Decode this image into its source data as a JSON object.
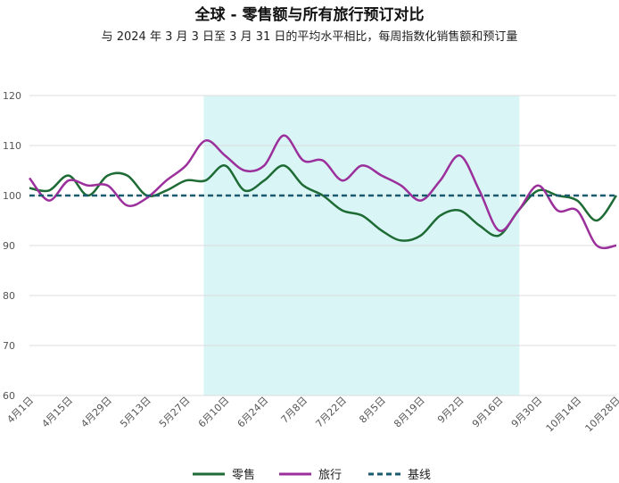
{
  "chart_data": {
    "type": "line",
    "title": "全球 - 零售额与所有旅行预订对比",
    "subtitle": "与 2024 年 3 月 3 日至 3 月 31 日的平均水平相比，每周指数化销售额和预订量",
    "xlabel": "",
    "ylabel": "",
    "ylim": [
      60,
      120
    ],
    "yticks": [
      60,
      70,
      80,
      90,
      100,
      110,
      120
    ],
    "grid": true,
    "legend_position": "bottom",
    "x_tick_labels": [
      "4月1日",
      "4月15日",
      "4月29日",
      "5月13日",
      "5月27日",
      "6月10日",
      "6月24日",
      "7月8日",
      "7月22日",
      "8月5日",
      "8月19日",
      "9月2日",
      "9月16日",
      "9月30日",
      "10月14日",
      "10月28日"
    ],
    "x": [
      "4月1日",
      "4月8日",
      "4月15日",
      "4月22日",
      "4月29日",
      "5月6日",
      "5月13日",
      "5月20日",
      "5月27日",
      "6月3日",
      "6月10日",
      "6月17日",
      "6月24日",
      "7月1日",
      "7月8日",
      "7月15日",
      "7月22日",
      "7月29日",
      "8月5日",
      "8月12日",
      "8月19日",
      "8月26日",
      "9月2日",
      "9月9日",
      "9月16日",
      "9月23日",
      "9月30日",
      "10月7日",
      "10月14日",
      "10月21日",
      "10月28日"
    ],
    "shaded_region": {
      "start": "6月3日",
      "end": "9月23日",
      "color": "#d9f5f5"
    },
    "series": [
      {
        "name": "零售",
        "color": "#1e6b35",
        "style": "solid",
        "values": [
          101.5,
          101,
          104,
          100,
          104,
          104,
          100,
          101,
          103,
          103,
          106,
          101,
          103,
          106,
          102,
          100,
          97,
          96,
          93,
          91,
          92,
          96,
          97,
          94,
          92,
          97,
          101,
          100,
          99,
          95,
          100
        ]
      },
      {
        "name": "旅行",
        "color": "#9b2f9b",
        "style": "solid",
        "values": [
          103.5,
          99,
          103,
          102,
          102,
          98,
          99.5,
          103,
          106,
          111,
          108,
          105,
          106,
          112,
          107,
          107,
          103,
          106,
          104,
          102,
          99,
          103,
          108,
          101,
          93,
          97,
          102,
          97,
          97,
          90,
          90
        ]
      },
      {
        "name": "基线",
        "color": "#1a5a6e",
        "style": "dashed",
        "values": [
          100,
          100,
          100,
          100,
          100,
          100,
          100,
          100,
          100,
          100,
          100,
          100,
          100,
          100,
          100,
          100,
          100,
          100,
          100,
          100,
          100,
          100,
          100,
          100,
          100,
          100,
          100,
          100,
          100,
          100,
          100
        ]
      }
    ]
  }
}
